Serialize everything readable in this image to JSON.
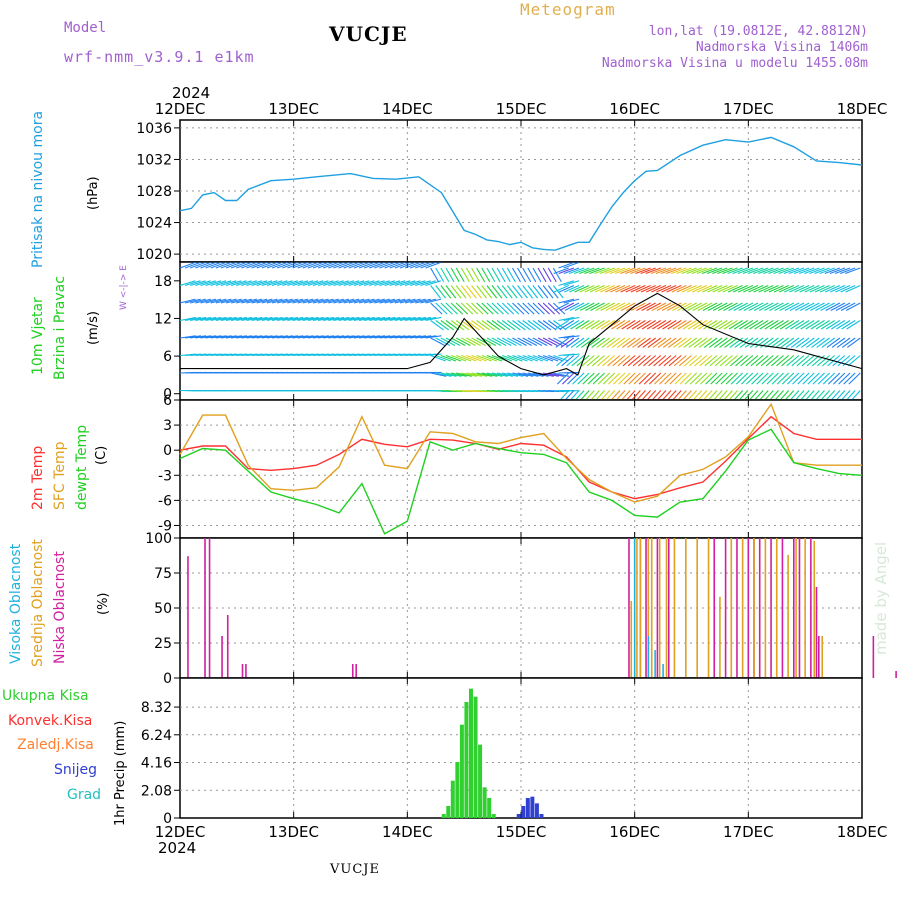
{
  "header": {
    "title": "VUCJE",
    "model_label": "Model",
    "model_name": "wrf-nmm_v3.9.1  e1km",
    "meteogram": "Meteogram",
    "lonlat": "lon,lat (19.0812E, 42.8812N)",
    "altitude": "Nadmorska Visina 1406m",
    "model_altitude": "Nadmorska Visina u modelu 1455.08m",
    "footer_title": "VUCJE",
    "signature": "made by Angel"
  },
  "colors": {
    "pressure": "#1fa0e0",
    "temp2m": "#ff3030",
    "sfc_temp": "#e0a020",
    "dewpt": "#20d020",
    "cloud_high": "#20b0e0",
    "cloud_mid": "#e0a020",
    "cloud_low": "#d020a0",
    "precip_total": "#30d030",
    "precip_conv": "#ff3030",
    "precip_snow": "#3040d0"
  },
  "chart_data": [
    {
      "type": "line",
      "panel": "pressure",
      "ylabel_line1": "Pritisak na nivou mora",
      "unit": "(hPa)",
      "ylim": [
        1019,
        1037
      ],
      "yticks": [
        "1020",
        "1024",
        "1028",
        "1032",
        "1036"
      ],
      "x_days": [
        0,
        0.1,
        0.2,
        0.3,
        0.4,
        0.5,
        0.6,
        0.8,
        1.0,
        1.2,
        1.5,
        1.7,
        1.9,
        2.1,
        2.3,
        2.4,
        2.5,
        2.6,
        2.7,
        2.8,
        2.9,
        3.0,
        3.1,
        3.2,
        3.3,
        3.4,
        3.5,
        3.6,
        3.7,
        3.8,
        3.9,
        4.0,
        4.1,
        4.2,
        4.4,
        4.6,
        4.8,
        5.0,
        5.2,
        5.4,
        5.6,
        5.8,
        6.0
      ],
      "values": [
        1025.5,
        1025.8,
        1027.5,
        1027.8,
        1026.8,
        1026.8,
        1028.2,
        1029.3,
        1029.5,
        1029.8,
        1030.2,
        1029.6,
        1029.5,
        1029.8,
        1027.8,
        1025.4,
        1023.0,
        1022.5,
        1021.8,
        1021.6,
        1021.2,
        1021.5,
        1020.8,
        1020.6,
        1020.5,
        1021.0,
        1021.5,
        1021.5,
        1023.8,
        1026.0,
        1027.8,
        1029.3,
        1030.5,
        1030.6,
        1032.5,
        1033.8,
        1034.5,
        1034.2,
        1034.8,
        1033.6,
        1031.8,
        1031.6,
        1031.3
      ],
      "grid": true
    },
    {
      "type": "line",
      "panel": "wind",
      "ylabel_line1": "10m Vjetar",
      "ylabel_line2": "Brzina i Pravac",
      "unit": "(m/s)",
      "compass": "W <-|-> E",
      "ylim": [
        -1,
        21
      ],
      "yticks": [
        "0",
        "6",
        "12",
        "18"
      ],
      "x_days": [
        0,
        0.5,
        1.0,
        1.5,
        2.0,
        2.2,
        2.4,
        2.5,
        2.6,
        2.8,
        3.0,
        3.2,
        3.4,
        3.5,
        3.6,
        3.8,
        4.0,
        4.2,
        4.4,
        4.6,
        5.0,
        5.4,
        6.0
      ],
      "values": [
        4,
        4,
        4,
        4,
        4,
        5,
        9,
        12,
        10,
        6,
        4,
        3,
        4,
        3,
        8,
        11,
        14,
        16,
        14,
        11,
        8,
        7,
        4
      ]
    },
    {
      "type": "line",
      "panel": "temperature",
      "ylabel_series": [
        "2m Temp",
        "SFC Temp",
        "dewpt Temp"
      ],
      "unit": "(C)",
      "ylim": [
        -10.5,
        6
      ],
      "yticks": [
        "6",
        "3",
        "0",
        "-3",
        "-6",
        "-9"
      ],
      "x_days": [
        0,
        0.2,
        0.4,
        0.6,
        0.8,
        1.0,
        1.2,
        1.4,
        1.6,
        1.8,
        2.0,
        2.2,
        2.4,
        2.6,
        2.8,
        3.0,
        3.2,
        3.4,
        3.6,
        3.8,
        4.0,
        4.2,
        4.4,
        4.6,
        4.8,
        5.0,
        5.2,
        5.4,
        5.6,
        5.8,
        6.0
      ],
      "series": [
        {
          "name": "2m Temp",
          "values": [
            0,
            0.5,
            0.5,
            -2.2,
            -2.4,
            -2.2,
            -1.8,
            -0.5,
            1.3,
            0.7,
            0.4,
            1.3,
            1.2,
            0.8,
            0.1,
            0.8,
            0.6,
            -0.8,
            -3.8,
            -5.0,
            -5.8,
            -5.3,
            -4.5,
            -3.8,
            -1.3,
            1.4,
            4.0,
            2.0,
            1.3,
            1.3,
            1.3
          ]
        },
        {
          "name": "SFC Temp",
          "values": [
            -0.5,
            4.2,
            4.2,
            -1.8,
            -4.6,
            -4.8,
            -4.5,
            -2.0,
            4.0,
            -1.8,
            -2.2,
            2.2,
            2.0,
            1.0,
            0.8,
            1.5,
            2.0,
            -1.0,
            -3.5,
            -5.0,
            -6.2,
            -5.5,
            -3.0,
            -2.3,
            -0.8,
            1.6,
            5.5,
            -1.5,
            -1.8,
            -1.8,
            -1.8
          ]
        },
        {
          "name": "dewpt Temp",
          "values": [
            -1.0,
            0.2,
            0.0,
            -2.5,
            -5.0,
            -5.8,
            -6.5,
            -7.5,
            -4.0,
            -10.0,
            -8.5,
            1.0,
            0.0,
            0.8,
            0.2,
            -0.3,
            -0.5,
            -1.5,
            -5.0,
            -6.0,
            -7.8,
            -8.0,
            -6.2,
            -5.8,
            -2.5,
            1.2,
            2.5,
            -1.5,
            -2.2,
            -2.8,
            -3.0
          ]
        }
      ],
      "grid": true
    },
    {
      "type": "bar",
      "panel": "clouds",
      "ylabel_series": [
        "Visoka Oblacnost",
        "Srednja Oblacnost",
        "Niska Oblacnost"
      ],
      "unit": "(%)",
      "ylim": [
        0,
        100
      ],
      "yticks": [
        "100",
        "75",
        "50",
        "25",
        "0"
      ],
      "series": [
        {
          "name": "Niska Oblacnost",
          "points": [
            [
              0.07,
              87
            ],
            [
              0.22,
              100
            ],
            [
              0.26,
              100
            ],
            [
              0.37,
              30
            ],
            [
              0.42,
              45
            ],
            [
              0.55,
              10
            ],
            [
              0.58,
              10
            ],
            [
              1.52,
              10
            ],
            [
              1.55,
              10
            ],
            [
              3.95,
              100
            ],
            [
              4.05,
              100
            ],
            [
              4.1,
              100
            ],
            [
              4.2,
              100
            ],
            [
              4.3,
              100
            ],
            [
              4.7,
              100
            ],
            [
              4.8,
              100
            ],
            [
              4.9,
              100
            ],
            [
              5.0,
              100
            ],
            [
              5.05,
              100
            ],
            [
              5.1,
              100
            ],
            [
              5.2,
              100
            ],
            [
              5.3,
              100
            ],
            [
              5.4,
              100
            ],
            [
              5.45,
              100
            ],
            [
              5.55,
              100
            ],
            [
              5.6,
              65
            ],
            [
              5.62,
              30
            ],
            [
              6.1,
              30
            ],
            [
              6.3,
              5
            ]
          ]
        },
        {
          "name": "Srednja Oblacnost",
          "points": [
            [
              3.97,
              55
            ],
            [
              4.02,
              100
            ],
            [
              4.05,
              100
            ],
            [
              4.12,
              100
            ],
            [
              4.15,
              100
            ],
            [
              4.22,
              100
            ],
            [
              4.28,
              100
            ],
            [
              4.35,
              100
            ],
            [
              4.45,
              100
            ],
            [
              4.55,
              100
            ],
            [
              4.65,
              100
            ],
            [
              4.75,
              58
            ],
            [
              4.85,
              100
            ],
            [
              4.95,
              100
            ],
            [
              5.05,
              100
            ],
            [
              5.15,
              100
            ],
            [
              5.25,
              100
            ],
            [
              5.35,
              88
            ],
            [
              5.42,
              100
            ],
            [
              5.5,
              100
            ],
            [
              5.58,
              98
            ],
            [
              5.65,
              30
            ],
            [
              6.97,
              30
            ],
            [
              7.0,
              18
            ]
          ]
        },
        {
          "name": "Visoka Oblacnost",
          "points": [
            [
              4.0,
              100
            ],
            [
              4.12,
              30
            ],
            [
              4.18,
              20
            ],
            [
              4.25,
              10
            ]
          ]
        }
      ]
    },
    {
      "type": "bar",
      "panel": "precip",
      "ylabel_series": [
        "Ukupna Kisa",
        "Konvek.Kisa",
        "Zaledj.Kisa",
        "Snijeg",
        "Grad"
      ],
      "unit": "1hr Precip (mm)",
      "ylim": [
        0,
        10.5
      ],
      "yticks": [
        "8.32",
        "6.24",
        "4.16",
        "2.08",
        "0"
      ],
      "series": [
        {
          "name": "Ukupna Kisa",
          "x_days": [
            2.32,
            2.36,
            2.4,
            2.44,
            2.48,
            2.52,
            2.56,
            2.6,
            2.64,
            2.68,
            2.72,
            2.76
          ],
          "values": [
            0.3,
            0.9,
            2.8,
            4.2,
            7.0,
            8.7,
            9.7,
            9.1,
            5.5,
            2.3,
            1.5,
            0.3
          ]
        },
        {
          "name": "Snijeg",
          "x_days": [
            2.98,
            3.02,
            3.06,
            3.1,
            3.14,
            3.18
          ],
          "values": [
            0.3,
            0.9,
            1.5,
            1.6,
            1.1,
            0.3
          ]
        }
      ]
    }
  ],
  "xaxis": {
    "year": "2024",
    "ticks": [
      "12DEC",
      "13DEC",
      "14DEC",
      "15DEC",
      "16DEC",
      "17DEC",
      "18DEC"
    ]
  }
}
